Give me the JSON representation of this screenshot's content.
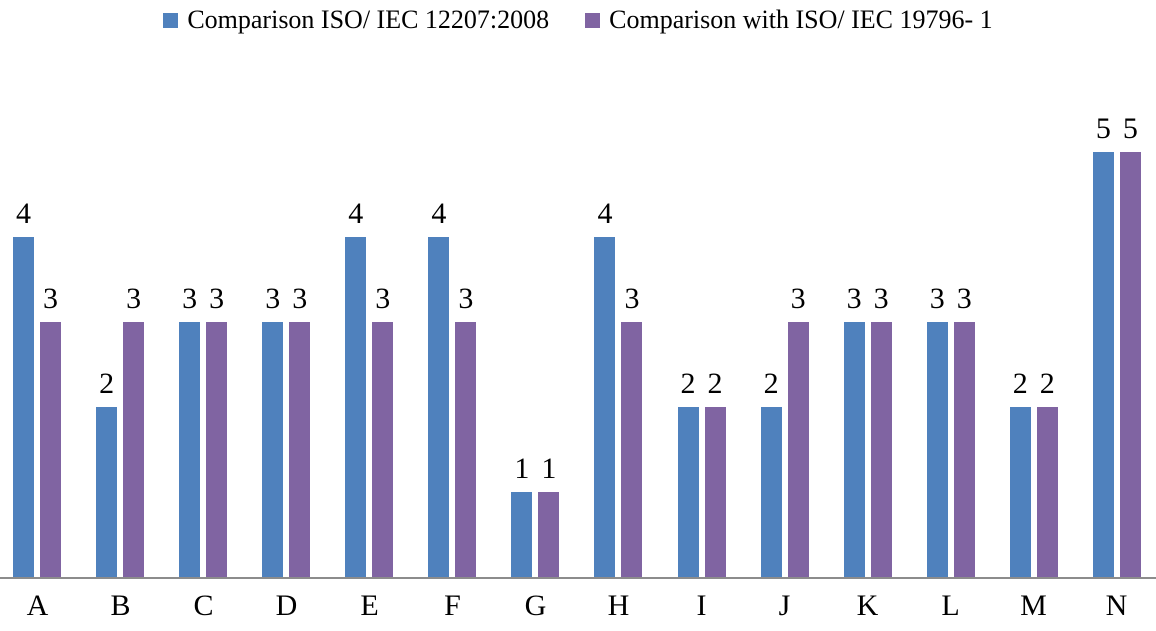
{
  "chart_data": {
    "type": "bar",
    "title": "",
    "categories": [
      "A",
      "B",
      "C",
      "D",
      "E",
      "F",
      "G",
      "H",
      "I",
      "J",
      "K",
      "L",
      "M",
      "N"
    ],
    "series": [
      {
        "name": "Comparison ISO/ IEC 12207:2008",
        "color": "#4F81BD",
        "values": [
          4,
          2,
          3,
          3,
          4,
          4,
          1,
          4,
          2,
          2,
          3,
          3,
          2,
          5
        ]
      },
      {
        "name": "Comparison with ISO/ IEC 19796- 1",
        "color": "#8064A2",
        "values": [
          3,
          3,
          3,
          3,
          3,
          3,
          1,
          3,
          2,
          3,
          3,
          3,
          2,
          5
        ]
      }
    ],
    "ylim": [
      0,
      5
    ],
    "y_axis_visible": false,
    "grid": false,
    "legend_position": "top",
    "data_labels": true,
    "axis_line_color": "#8C8C8C",
    "text_color": "#000000",
    "background": "#FFFFFF"
  }
}
